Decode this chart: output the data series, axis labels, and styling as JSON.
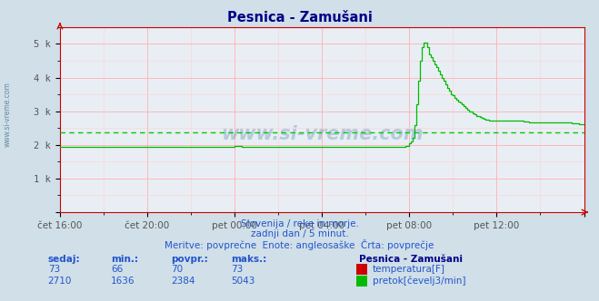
{
  "title": "Pesnica - Zamušani",
  "background_color": "#d0dfe8",
  "plot_bg_color": "#e8eef4",
  "grid_color_major": "#ffb0b0",
  "grid_color_minor": "#ffd0d0",
  "x_labels": [
    "čet 16:00",
    "čet 20:00",
    "pet 00:00",
    "pet 04:00",
    "pet 08:00",
    "pet 12:00",
    ""
  ],
  "y_labels": [
    "",
    "1 k",
    "2 k",
    "3 k",
    "4 k",
    "5 k"
  ],
  "ylim": [
    0,
    5500
  ],
  "xlim_min": 0,
  "xlim_max": 288,
  "avg_flow": 2384,
  "subtitle1": "Slovenija / reke in morje.",
  "subtitle2": "zadnji dan / 5 minut.",
  "subtitle3": "Meritve: povprečne  Enote: angleosaške  Črta: povprečje",
  "table_headers": [
    "sedaj:",
    "min.:",
    "povpr.:",
    "maks.:"
  ],
  "table_temp": [
    73,
    66,
    70,
    73
  ],
  "table_flow": [
    2710,
    1636,
    2384,
    5043
  ],
  "station_name": "Pesnica - Zamušani",
  "label_temp": "temperatura[F]",
  "label_flow": "pretok[čevelj3/min]",
  "color_temp": "#cc0000",
  "color_flow": "#00bb00",
  "color_avg_line": "#00cc00",
  "title_color": "#000088",
  "subtitle_color": "#2255cc",
  "table_color": "#2255cc",
  "station_name_color": "#000088",
  "left_label_color": "#336688",
  "spine_color": "#cc0000",
  "arrow_color": "#cc0000"
}
